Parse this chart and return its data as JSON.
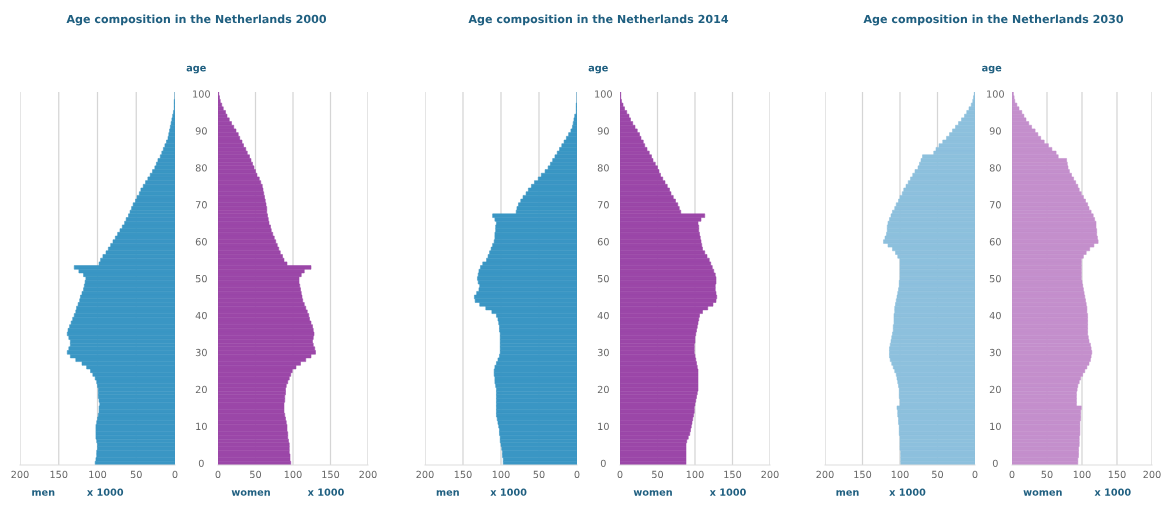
{
  "chart_data": [
    {
      "type": "bar",
      "orientation": "horizontal",
      "title": "Age composition in the Netherlands 2000",
      "xlabel": "men",
      "annotations": [
        "x 1000"
      ],
      "tick_labels": "x",
      "grid": "x",
      "xlim": [
        200,
        0
      ],
      "xticks": [
        200,
        150,
        100,
        50,
        0
      ],
      "categories": [
        "100",
        null,
        null,
        null,
        null,
        null,
        null,
        null,
        null,
        null,
        "90",
        null,
        null,
        null,
        null,
        null,
        null,
        null,
        null,
        null,
        "80",
        null,
        null,
        null,
        null,
        null,
        null,
        null,
        null,
        null,
        "70",
        null,
        null,
        null,
        null,
        null,
        null,
        null,
        null,
        null,
        "60",
        null,
        null,
        null,
        null,
        null,
        null,
        null,
        null,
        null,
        "50",
        null,
        null,
        null,
        null,
        null,
        null,
        null,
        null,
        null,
        "40",
        null,
        null,
        null,
        null,
        null,
        null,
        null,
        null,
        null,
        "30",
        null,
        null,
        null,
        null,
        null,
        null,
        null,
        null,
        null,
        "20",
        null,
        null,
        null,
        null,
        null,
        null,
        null,
        null,
        null,
        "10",
        null,
        null,
        null,
        null,
        null,
        null,
        null,
        null,
        null,
        "0"
      ],
      "series": [
        {
          "color": "#3a96c4",
          "values": [
            0,
            0,
            1,
            1,
            1,
            2,
            3,
            4,
            5,
            6,
            7,
            8,
            9,
            11,
            13,
            15,
            17,
            19,
            22,
            24,
            26,
            29,
            32,
            35,
            38,
            41,
            44,
            46,
            49,
            51,
            54,
            56,
            58,
            60,
            63,
            65,
            68,
            71,
            74,
            77,
            80,
            83,
            86,
            89,
            93,
            96,
            98,
            130,
            124,
            118,
            115,
            116,
            117,
            118,
            120,
            122,
            123,
            125,
            127,
            128,
            130,
            132,
            134,
            136,
            138,
            139,
            137,
            135,
            135,
            137,
            139,
            135,
            128,
            120,
            114,
            109,
            106,
            103,
            101,
            100,
            99,
            99,
            99,
            98,
            97,
            98,
            98,
            99,
            100,
            101,
            102,
            102,
            102,
            102,
            101,
            100,
            100,
            101,
            101,
            102,
            103
          ]
        }
      ]
    },
    {
      "type": "bar",
      "orientation": "horizontal",
      "xlabel": "women",
      "ylabel": "age",
      "annotations": [
        "x 1000"
      ],
      "grid": "x",
      "xlim": [
        0,
        200
      ],
      "xticks": [
        0,
        50,
        100,
        150,
        200
      ],
      "categories": [
        "100",
        null,
        null,
        null,
        null,
        null,
        null,
        null,
        null,
        null,
        "90",
        null,
        null,
        null,
        null,
        null,
        null,
        null,
        null,
        null,
        "80",
        null,
        null,
        null,
        null,
        null,
        null,
        null,
        null,
        null,
        "70",
        null,
        null,
        null,
        null,
        null,
        null,
        null,
        null,
        null,
        "60",
        null,
        null,
        null,
        null,
        null,
        null,
        null,
        null,
        null,
        "50",
        null,
        null,
        null,
        null,
        null,
        null,
        null,
        null,
        null,
        "40",
        null,
        null,
        null,
        null,
        null,
        null,
        null,
        null,
        null,
        "30",
        null,
        null,
        null,
        null,
        null,
        null,
        null,
        null,
        null,
        "20",
        null,
        null,
        null,
        null,
        null,
        null,
        null,
        null,
        null,
        "10",
        null,
        null,
        null,
        null,
        null,
        null,
        null,
        null,
        null,
        "0"
      ],
      "series": [
        {
          "color": "#9b47a8",
          "values": [
            1,
            2,
            3,
            5,
            7,
            10,
            12,
            15,
            18,
            21,
            24,
            27,
            29,
            32,
            34,
            37,
            39,
            42,
            44,
            46,
            48,
            50,
            52,
            55,
            57,
            59,
            60,
            61,
            62,
            63,
            64,
            65,
            65,
            66,
            67,
            68,
            70,
            71,
            73,
            75,
            77,
            79,
            81,
            83,
            86,
            88,
            92,
            124,
            115,
            111,
            108,
            108,
            109,
            110,
            111,
            112,
            113,
            115,
            117,
            119,
            121,
            122,
            124,
            126,
            127,
            128,
            127,
            126,
            127,
            129,
            130,
            124,
            117,
            110,
            104,
            99,
            97,
            95,
            93,
            91,
            90,
            90,
            89,
            89,
            88,
            88,
            88,
            89,
            90,
            91,
            92,
            92,
            93,
            93,
            94,
            95,
            95,
            95,
            96,
            96,
            97
          ]
        }
      ]
    },
    {
      "type": "bar",
      "orientation": "horizontal",
      "title": "Age composition in the Netherlands 2014",
      "xlabel": "men",
      "annotations": [
        "x 1000"
      ],
      "tick_labels": "x",
      "grid": "x",
      "xlim": [
        200,
        0
      ],
      "xticks": [
        200,
        150,
        100,
        50,
        0
      ],
      "categories": [
        "100",
        null,
        null,
        null,
        null,
        null,
        null,
        null,
        null,
        null,
        "90",
        null,
        null,
        null,
        null,
        null,
        null,
        null,
        null,
        null,
        "80",
        null,
        null,
        null,
        null,
        null,
        null,
        null,
        null,
        null,
        "70",
        null,
        null,
        null,
        null,
        null,
        null,
        null,
        null,
        null,
        "60",
        null,
        null,
        null,
        null,
        null,
        null,
        null,
        null,
        null,
        "50",
        null,
        null,
        null,
        null,
        null,
        null,
        null,
        null,
        null,
        "40",
        null,
        null,
        null,
        null,
        null,
        null,
        null,
        null,
        null,
        "30",
        null,
        null,
        null,
        null,
        null,
        null,
        null,
        null,
        null,
        "20",
        null,
        null,
        null,
        null,
        null,
        null,
        null,
        null,
        null,
        "10",
        null,
        null,
        null,
        null,
        null,
        null,
        null,
        null,
        null,
        "0"
      ],
      "series": [
        {
          "color": "#3a96c4",
          "values": [
            0,
            0,
            0,
            1,
            1,
            1,
            3,
            4,
            5,
            6,
            8,
            11,
            14,
            17,
            20,
            23,
            26,
            29,
            32,
            35,
            38,
            42,
            47,
            51,
            56,
            60,
            64,
            67,
            71,
            74,
            77,
            79,
            80,
            111,
            108,
            106,
            107,
            107,
            108,
            108,
            109,
            111,
            113,
            115,
            117,
            119,
            124,
            127,
            129,
            130,
            131,
            130,
            128,
            129,
            132,
            135,
            134,
            128,
            120,
            112,
            106,
            104,
            103,
            102,
            102,
            101,
            101,
            101,
            101,
            101,
            101,
            102,
            104,
            106,
            108,
            109,
            109,
            108,
            108,
            107,
            106,
            106,
            106,
            106,
            106,
            106,
            106,
            106,
            105,
            104,
            103,
            102,
            102,
            101,
            101,
            100,
            99,
            98,
            98,
            97,
            97
          ]
        }
      ]
    },
    {
      "type": "bar",
      "orientation": "horizontal",
      "xlabel": "women",
      "ylabel": "age",
      "annotations": [
        "x 1000"
      ],
      "grid": "x",
      "xlim": [
        0,
        200
      ],
      "xticks": [
        0,
        50,
        100,
        150,
        200
      ],
      "categories": [
        "100",
        null,
        null,
        null,
        null,
        null,
        null,
        null,
        null,
        null,
        "90",
        null,
        null,
        null,
        null,
        null,
        null,
        null,
        null,
        null,
        "80",
        null,
        null,
        null,
        null,
        null,
        null,
        null,
        null,
        null,
        "70",
        null,
        null,
        null,
        null,
        null,
        null,
        null,
        null,
        null,
        "60",
        null,
        null,
        null,
        null,
        null,
        null,
        null,
        null,
        null,
        "50",
        null,
        null,
        null,
        null,
        null,
        null,
        null,
        null,
        null,
        "40",
        null,
        null,
        null,
        null,
        null,
        null,
        null,
        null,
        null,
        "30",
        null,
        null,
        null,
        null,
        null,
        null,
        null,
        null,
        null,
        "20",
        null,
        null,
        null,
        null,
        null,
        null,
        null,
        null,
        null,
        "10",
        null,
        null,
        null,
        null,
        null,
        null,
        null,
        null,
        null,
        "0"
      ],
      "series": [
        {
          "color": "#9b47a8",
          "values": [
            1,
            1,
            2,
            4,
            6,
            9,
            12,
            14,
            17,
            20,
            23,
            26,
            28,
            31,
            33,
            36,
            39,
            42,
            44,
            47,
            50,
            52,
            54,
            57,
            60,
            63,
            66,
            68,
            71,
            74,
            77,
            79,
            81,
            113,
            108,
            104,
            105,
            105,
            106,
            107,
            108,
            109,
            110,
            113,
            116,
            119,
            121,
            123,
            125,
            127,
            128,
            128,
            127,
            127,
            128,
            129,
            128,
            124,
            117,
            110,
            106,
            105,
            104,
            103,
            102,
            101,
            100,
            100,
            99,
            99,
            99,
            100,
            101,
            102,
            103,
            104,
            104,
            104,
            104,
            104,
            104,
            103,
            102,
            101,
            100,
            99,
            99,
            98,
            97,
            96,
            95,
            94,
            93,
            91,
            89,
            88,
            88,
            88,
            88,
            88,
            88
          ]
        }
      ]
    },
    {
      "type": "bar",
      "orientation": "horizontal",
      "title": "Age composition in the Netherlands 2030",
      "xlabel": "men",
      "annotations": [
        "x 1000"
      ],
      "tick_labels": "x",
      "grid": "x",
      "xlim": [
        200,
        0
      ],
      "xticks": [
        200,
        150,
        100,
        50,
        0
      ],
      "categories": [
        "100",
        null,
        null,
        null,
        null,
        null,
        null,
        null,
        null,
        null,
        "90",
        null,
        null,
        null,
        null,
        null,
        null,
        null,
        null,
        null,
        "80",
        null,
        null,
        null,
        null,
        null,
        null,
        null,
        null,
        null,
        "70",
        null,
        null,
        null,
        null,
        null,
        null,
        null,
        null,
        null,
        "60",
        null,
        null,
        null,
        null,
        null,
        null,
        null,
        null,
        null,
        "50",
        null,
        null,
        null,
        null,
        null,
        null,
        null,
        null,
        null,
        "40",
        null,
        null,
        null,
        null,
        null,
        null,
        null,
        null,
        null,
        "30",
        null,
        null,
        null,
        null,
        null,
        null,
        null,
        null,
        null,
        "20",
        null,
        null,
        null,
        null,
        null,
        null,
        null,
        null,
        null,
        "10",
        null,
        null,
        null,
        null,
        null,
        null,
        null,
        null,
        null,
        "0"
      ],
      "series": [
        {
          "color": "#8dc0dd",
          "values": [
            1,
            2,
            3,
            5,
            8,
            11,
            14,
            18,
            22,
            26,
            30,
            34,
            38,
            43,
            48,
            52,
            55,
            70,
            72,
            74,
            76,
            80,
            83,
            86,
            89,
            92,
            95,
            97,
            100,
            102,
            105,
            107,
            110,
            112,
            114,
            116,
            117,
            117,
            118,
            120,
            122,
            116,
            110,
            106,
            103,
            100,
            100,
            100,
            100,
            100,
            100,
            101,
            101,
            102,
            103,
            104,
            105,
            106,
            107,
            107,
            108,
            108,
            108,
            109,
            109,
            110,
            111,
            112,
            113,
            114,
            114,
            114,
            113,
            111,
            109,
            107,
            105,
            104,
            103,
            102,
            101,
            101,
            101,
            100,
            100,
            104,
            103,
            103,
            102,
            102,
            101,
            101,
            101,
            100,
            100,
            100,
            100,
            99,
            99,
            99,
            99
          ]
        }
      ]
    },
    {
      "type": "bar",
      "orientation": "horizontal",
      "xlabel": "women",
      "ylabel": "age",
      "annotations": [
        "x 1000"
      ],
      "grid": "x",
      "xlim": [
        0,
        200
      ],
      "xticks": [
        0,
        50,
        100,
        150,
        200
      ],
      "categories": [
        "100",
        null,
        null,
        null,
        null,
        null,
        null,
        null,
        null,
        null,
        "90",
        null,
        null,
        null,
        null,
        null,
        null,
        null,
        null,
        null,
        "80",
        null,
        null,
        null,
        null,
        null,
        null,
        null,
        null,
        null,
        "70",
        null,
        null,
        null,
        null,
        null,
        null,
        null,
        null,
        null,
        "60",
        null,
        null,
        null,
        null,
        null,
        null,
        null,
        null,
        null,
        "50",
        null,
        null,
        null,
        null,
        null,
        null,
        null,
        null,
        null,
        "40",
        null,
        null,
        null,
        null,
        null,
        null,
        null,
        null,
        null,
        "30",
        null,
        null,
        null,
        null,
        null,
        null,
        null,
        null,
        null,
        "20",
        null,
        null,
        null,
        null,
        null,
        null,
        null,
        null,
        null,
        "10",
        null,
        null,
        null,
        null,
        null,
        null,
        null,
        null,
        null,
        "0"
      ],
      "series": [
        {
          "color": "#c48fcc",
          "values": [
            2,
            3,
            4,
            7,
            10,
            14,
            17,
            20,
            24,
            28,
            33,
            37,
            41,
            46,
            52,
            57,
            63,
            66,
            78,
            79,
            80,
            82,
            85,
            88,
            91,
            94,
            96,
            99,
            102,
            105,
            108,
            110,
            113,
            116,
            118,
            120,
            120,
            121,
            121,
            122,
            123,
            117,
            111,
            106,
            102,
            99,
            99,
            99,
            99,
            99,
            99,
            100,
            101,
            102,
            103,
            104,
            105,
            106,
            107,
            107,
            108,
            108,
            108,
            108,
            108,
            108,
            109,
            110,
            112,
            113,
            114,
            113,
            112,
            110,
            107,
            104,
            101,
            98,
            96,
            94,
            93,
            92,
            92,
            92,
            92,
            99,
            98,
            98,
            98,
            97,
            97,
            97,
            97,
            96,
            96,
            96,
            95,
            95,
            95,
            94,
            94
          ]
        }
      ]
    }
  ]
}
